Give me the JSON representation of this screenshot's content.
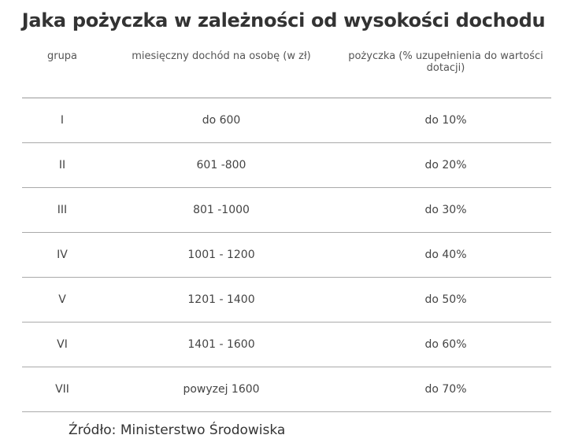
{
  "title": "Jaka pożyczka w zależności od wysokości dochodu",
  "table": {
    "header": [
      "grupa",
      "miesięczny dochód na osobę (w zł)",
      "pożyczka (% uzupełnienia do wartości dotacji)"
    ],
    "rows": [
      [
        "I",
        "do 600",
        "do 10%"
      ],
      [
        "II",
        "601 -800",
        "do 20%"
      ],
      [
        "III",
        "801 -1000",
        "do 30%"
      ],
      [
        "IV",
        "1001 - 1200",
        "do 40%"
      ],
      [
        "V",
        "1201 - 1400",
        "do 50%"
      ],
      [
        "VI",
        "1401 - 1600",
        "do 60%"
      ],
      [
        "VII",
        "powyzej 1600",
        "do 70%"
      ]
    ]
  },
  "source": "Źródło: Ministerstwo Środowiska"
}
